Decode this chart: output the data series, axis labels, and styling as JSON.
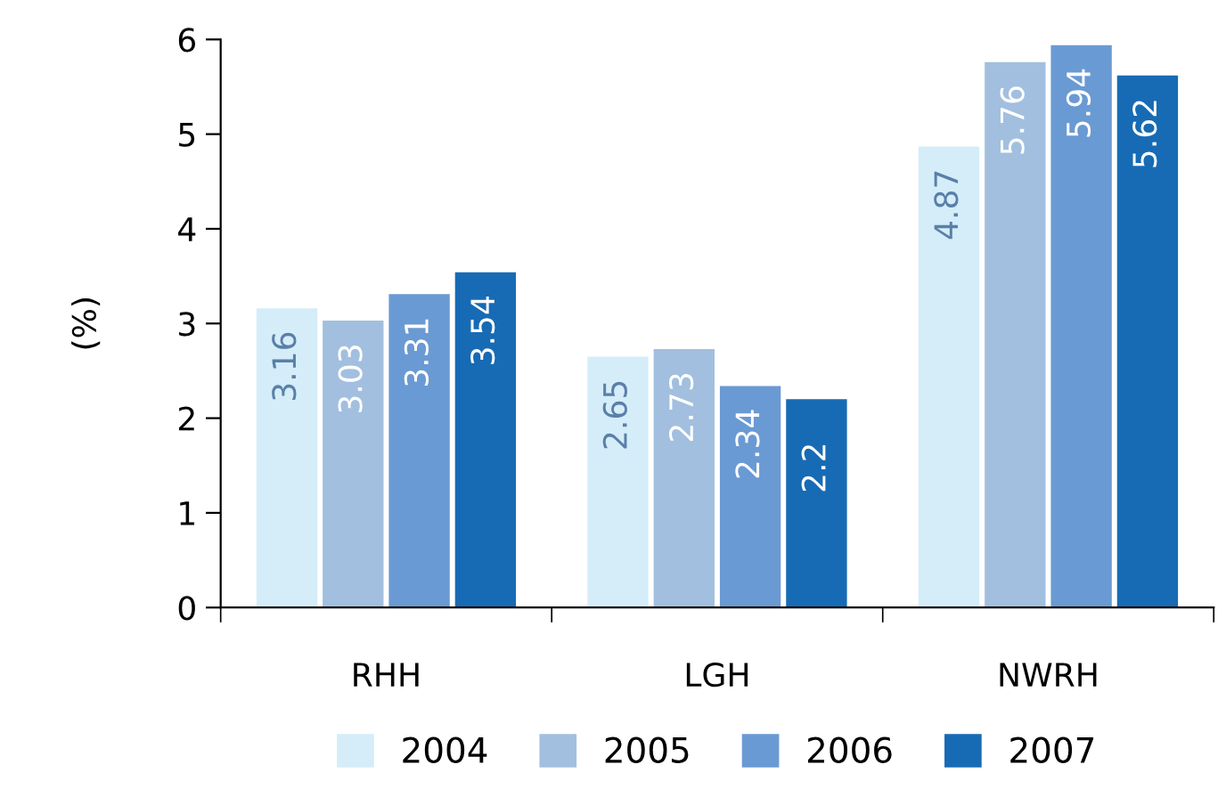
{
  "chart_data": {
    "type": "bar",
    "ylabel": "(%)",
    "categories": [
      "RHH",
      "LGH",
      "NWRH"
    ],
    "series": [
      {
        "name": "2004",
        "color": "#d4edf9",
        "values": [
          3.16,
          2.65,
          4.87
        ]
      },
      {
        "name": "2005",
        "color": "#a2bfdf",
        "values": [
          3.03,
          2.73,
          5.76
        ]
      },
      {
        "name": "2006",
        "color": "#6a9ad3",
        "values": [
          3.31,
          2.34,
          5.94
        ]
      },
      {
        "name": "2007",
        "color": "#176bb4",
        "values": [
          3.54,
          2.2,
          5.62
        ]
      }
    ],
    "ylim": [
      0,
      6
    ],
    "yticks": [
      0,
      1,
      2,
      3,
      4,
      5,
      6
    ],
    "grid": false,
    "legend": "bottom",
    "data_labels": true
  }
}
